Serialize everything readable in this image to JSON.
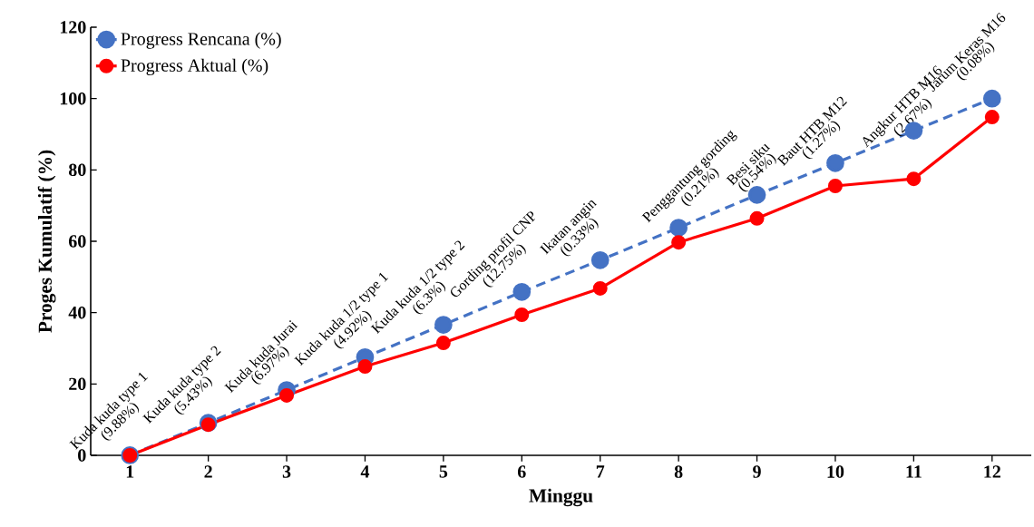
{
  "chart_data": {
    "type": "line",
    "xlabel": "Minggu",
    "ylabel": "Proges Kumulatif (%)",
    "categories": [
      "1",
      "2",
      "3",
      "4",
      "5",
      "6",
      "7",
      "8",
      "9",
      "10",
      "11",
      "12"
    ],
    "series": [
      {
        "name": "Progress Rencana (%)",
        "color": "#4472c4",
        "line_style": "dashed",
        "values": [
          0,
          9.1,
          18.3,
          27.5,
          36.6,
          45.8,
          54.7,
          63.8,
          73.0,
          81.9,
          91.0,
          100
        ]
      },
      {
        "name": "Progress Aktual (%)",
        "color": "#ff0000",
        "line_style": "solid",
        "values": [
          0,
          8.6,
          16.8,
          24.9,
          31.5,
          39.4,
          46.8,
          59.7,
          66.4,
          75.5,
          77.5,
          94.8
        ]
      }
    ],
    "ylim": [
      0,
      120
    ],
    "yticks": [
      0,
      20,
      40,
      60,
      80,
      100,
      120
    ],
    "grid": false,
    "legend": "top left",
    "marker": "circle",
    "annotations": [
      "Kuda kuda type 1",
      "(9.88%)",
      "Kuda kuda type 2",
      "(5.43%)",
      "Kuda kuda Jurai",
      "(6.97%)",
      "Kuda kuda 1/2 type 1",
      "(4.92%)",
      "Kuda kuda 1/2 type 2",
      "(6.3%)",
      "Gording profil CNP",
      "(12.75%)",
      "Ikatan angin",
      "(0.33%)",
      "Penggantung gording",
      "(0.21%)",
      "Besi siku",
      "(0.54%)",
      "Baut HTB M12",
      "(1.27%)",
      "Angkur HTB M16",
      "(2.67%)",
      "Jarum Keras M16",
      "(0.08%)"
    ]
  }
}
